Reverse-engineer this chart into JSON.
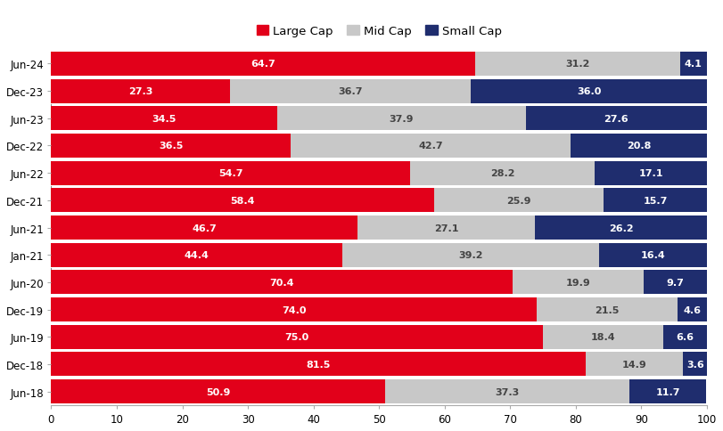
{
  "categories": [
    "Jun-18",
    "Dec-18",
    "Jun-19",
    "Dec-19",
    "Jun-20",
    "Jan-21",
    "Jun-21",
    "Dec-21",
    "Jun-22",
    "Dec-22",
    "Jun-23",
    "Dec-23",
    "Jun-24"
  ],
  "large_cap": [
    50.9,
    81.5,
    75.0,
    74.0,
    70.4,
    44.4,
    46.7,
    58.4,
    54.7,
    36.5,
    34.5,
    27.3,
    64.7
  ],
  "mid_cap": [
    37.3,
    14.9,
    18.4,
    21.5,
    19.9,
    39.2,
    27.1,
    25.9,
    28.2,
    42.7,
    37.9,
    36.7,
    31.2
  ],
  "small_cap": [
    11.7,
    3.6,
    6.6,
    4.6,
    9.7,
    16.4,
    26.2,
    15.7,
    17.1,
    20.8,
    27.6,
    36.0,
    4.1
  ],
  "large_cap_color": "#e2001a",
  "mid_cap_color": "#c8c8c8",
  "small_cap_color": "#1f2d6e",
  "bar_height": 0.88,
  "xlim": [
    0,
    100
  ],
  "xticks": [
    0,
    10,
    20,
    30,
    40,
    50,
    60,
    70,
    80,
    90,
    100
  ],
  "legend_labels": [
    "Large Cap",
    "Mid Cap",
    "Small Cap"
  ],
  "text_color_light": "#ffffff",
  "text_color_dark": "#444444",
  "label_fontsize": 8.0,
  "tick_fontsize": 8.5,
  "legend_fontsize": 9.5
}
